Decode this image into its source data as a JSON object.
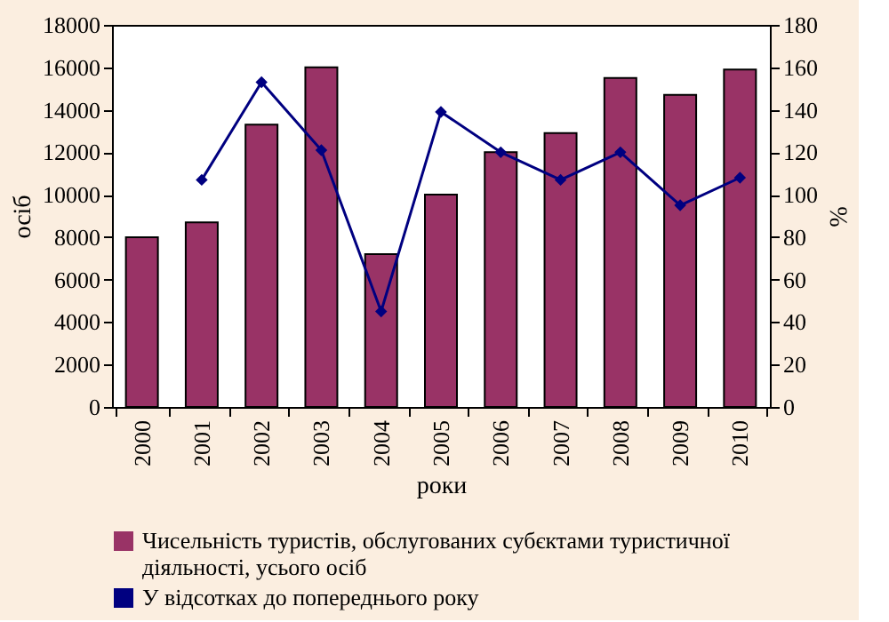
{
  "chart_data": {
    "type": "bar",
    "categories": [
      "2000",
      "2001",
      "2002",
      "2003",
      "2004",
      "2005",
      "2006",
      "2007",
      "2008",
      "2009",
      "2010"
    ],
    "xlabel": "роки",
    "ylabel": "осіб",
    "y2label": "%",
    "ylim": [
      0,
      18000
    ],
    "yticks": [
      0,
      2000,
      4000,
      6000,
      8000,
      10000,
      12000,
      14000,
      16000,
      18000
    ],
    "y2lim": [
      0,
      180
    ],
    "y2ticks": [
      0,
      20,
      40,
      60,
      80,
      100,
      120,
      140,
      160,
      180
    ],
    "grid": false,
    "legend": "bottom",
    "marker": "diamond",
    "line_style": "solid",
    "series": [
      {
        "name": "Чисельність туристів, обслугованих субєктами туристичної діяльності, усього осіб",
        "color": "#993366",
        "values": [
          8000,
          8700,
          13300,
          16000,
          7200,
          10000,
          12000,
          12900,
          15500,
          14700,
          15900
        ]
      },
      {
        "name": "У відсотках до попереднього року",
        "type": "line",
        "axis": "y2",
        "color": "#000080",
        "values": [
          null,
          107,
          153,
          121,
          45,
          139,
          120,
          107,
          120,
          95,
          108
        ]
      }
    ]
  }
}
